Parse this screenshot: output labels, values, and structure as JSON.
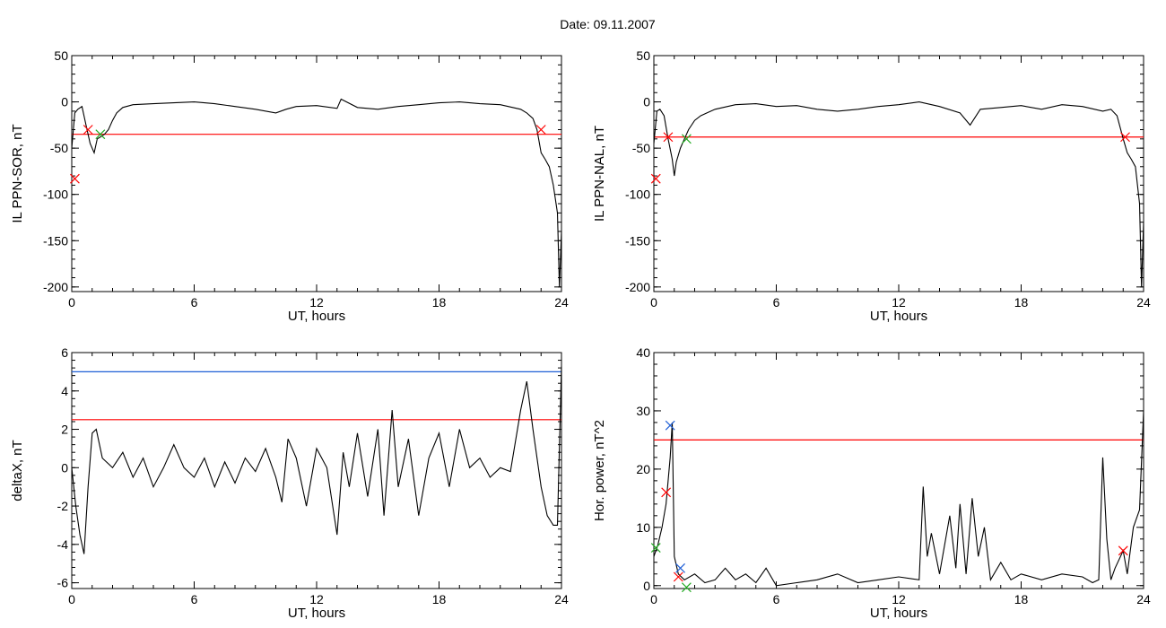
{
  "header": {
    "date_label": "Date:  09.11.2007"
  },
  "colors": {
    "trace": "#000000",
    "threshold_red": "#ff0000",
    "threshold_blue": "#1f5fd6",
    "marker_green": "#22aa22"
  },
  "chart_data": [
    {
      "type": "line",
      "ylabel": "IL PPN-SOR, nT",
      "xlabel": "UT, hours",
      "xlim": [
        0,
        24
      ],
      "ylim": [
        -205,
        50
      ],
      "xticks": [
        "0",
        "6",
        "12",
        "18",
        "24"
      ],
      "yticks": [
        "50",
        "0",
        "-50",
        "-100",
        "-150",
        "-200"
      ],
      "ytick_values": [
        50,
        0,
        -50,
        -100,
        -150,
        -200
      ],
      "threshold": -35,
      "series": [
        {
          "x": [
            0,
            0.15,
            0.3,
            0.5,
            0.7,
            0.9,
            1.1,
            1.25,
            1.4,
            1.6,
            1.8,
            2.0,
            2.2,
            2.5,
            3,
            4,
            5,
            6,
            7,
            8,
            9,
            10,
            10.5,
            11,
            12,
            13,
            13.2,
            14,
            15,
            16,
            17,
            18,
            19,
            20,
            21,
            22,
            22.3,
            22.6,
            22.8,
            23,
            23.2,
            23.4,
            23.6,
            23.8,
            23.9,
            24
          ],
          "y": [
            -50,
            -12,
            -8,
            -5,
            -25,
            -45,
            -55,
            -40,
            -38,
            -35,
            -30,
            -20,
            -12,
            -6,
            -3,
            -2,
            -1,
            0,
            -2,
            -5,
            -8,
            -12,
            -8,
            -5,
            -4,
            -7,
            3,
            -6,
            -8,
            -5,
            -3,
            -1,
            0,
            -2,
            -3,
            -8,
            -12,
            -18,
            -30,
            -55,
            -62,
            -70,
            -90,
            -120,
            -200,
            -140
          ]
        }
      ],
      "markers": [
        {
          "x": 0.8,
          "y": -30,
          "color": "red"
        },
        {
          "x": 1.4,
          "y": -35,
          "color": "green"
        },
        {
          "x": 23.0,
          "y": -30,
          "color": "red"
        },
        {
          "x": 0.15,
          "y": -83,
          "color": "red"
        }
      ]
    },
    {
      "type": "line",
      "ylabel": "IL PPN-NAL, nT",
      "xlabel": "UT, hours",
      "xlim": [
        0,
        24
      ],
      "ylim": [
        -205,
        50
      ],
      "xticks": [
        "0",
        "6",
        "12",
        "18",
        "24"
      ],
      "yticks": [
        "50",
        "0",
        "-50",
        "-100",
        "-150",
        "-200"
      ],
      "ytick_values": [
        50,
        0,
        -50,
        -100,
        -150,
        -200
      ],
      "threshold": -38,
      "series": [
        {
          "x": [
            0,
            0.15,
            0.3,
            0.5,
            0.7,
            0.9,
            1.0,
            1.1,
            1.3,
            1.5,
            1.7,
            2.0,
            2.3,
            2.6,
            3,
            4,
            5,
            6,
            7,
            8,
            9,
            10,
            11,
            12,
            13,
            14,
            15,
            15.5,
            16,
            17,
            18,
            19,
            20,
            21,
            22,
            22.4,
            22.7,
            23,
            23.2,
            23.4,
            23.6,
            23.8,
            23.9,
            24
          ],
          "y": [
            -45,
            -10,
            -8,
            -15,
            -40,
            -62,
            -80,
            -65,
            -50,
            -40,
            -30,
            -20,
            -15,
            -12,
            -8,
            -3,
            -2,
            -5,
            -4,
            -8,
            -10,
            -8,
            -5,
            -3,
            0,
            -5,
            -12,
            -25,
            -8,
            -6,
            -4,
            -8,
            -3,
            -5,
            -10,
            -8,
            -15,
            -40,
            -55,
            -62,
            -70,
            -110,
            -200,
            -130
          ]
        }
      ],
      "markers": [
        {
          "x": 0.7,
          "y": -38,
          "color": "red"
        },
        {
          "x": 1.6,
          "y": -40,
          "color": "green"
        },
        {
          "x": 23.1,
          "y": -38,
          "color": "red"
        },
        {
          "x": 0.1,
          "y": -83,
          "color": "red"
        }
      ]
    },
    {
      "type": "line",
      "ylabel": "deltaX, nT",
      "xlabel": "UT, hours",
      "xlim": [
        0,
        24
      ],
      "ylim": [
        -6.3,
        6
      ],
      "xticks": [
        "0",
        "6",
        "12",
        "18",
        "24"
      ],
      "yticks": [
        "6",
        "4",
        "2",
        "0",
        "-2",
        "-4",
        "-6"
      ],
      "ytick_values": [
        6,
        4,
        2,
        0,
        -2,
        -4,
        -6
      ],
      "threshold": 2.5,
      "threshold2": 5.0,
      "series": [
        {
          "x": [
            0,
            0.2,
            0.4,
            0.6,
            0.8,
            1.0,
            1.2,
            1.5,
            2,
            2.5,
            3,
            3.5,
            4,
            4.5,
            5,
            5.5,
            6,
            6.5,
            7,
            7.5,
            8,
            8.5,
            9,
            9.5,
            10,
            10.3,
            10.6,
            11,
            11.5,
            12,
            12.5,
            13,
            13.3,
            13.6,
            14,
            14.5,
            15,
            15.3,
            15.7,
            16,
            16.5,
            17,
            17.5,
            18,
            18.5,
            19,
            19.5,
            20,
            20.5,
            21,
            21.5,
            22,
            22.3,
            22.6,
            23,
            23.3,
            23.6,
            23.8,
            24
          ],
          "y": [
            0,
            -2,
            -3.5,
            -4.5,
            -1,
            1.8,
            2,
            0.5,
            0,
            0.8,
            -0.5,
            0.5,
            -1,
            0,
            1.2,
            0,
            -0.5,
            0.5,
            -1,
            0.3,
            -0.8,
            0.5,
            -0.2,
            1,
            -0.5,
            -1.8,
            1.5,
            0.5,
            -2,
            1,
            0,
            -3.5,
            0.8,
            -1,
            1.8,
            -1.5,
            2,
            -2.5,
            3,
            -1,
            1.5,
            -2.5,
            0.5,
            1.8,
            -1,
            2,
            0,
            0.5,
            -0.5,
            0,
            -0.2,
            3,
            4.5,
            2,
            -1,
            -2.5,
            -3,
            -3,
            5.3
          ]
        }
      ],
      "markers": []
    },
    {
      "type": "line",
      "ylabel": "Hor. power, nT^2",
      "xlabel": "UT, hours",
      "xlim": [
        0,
        24
      ],
      "ylim": [
        -0.5,
        40
      ],
      "xticks": [
        "0",
        "6",
        "12",
        "18",
        "24"
      ],
      "yticks": [
        "40",
        "30",
        "20",
        "10",
        "0"
      ],
      "ytick_values": [
        40,
        30,
        20,
        10,
        0
      ],
      "threshold": 25,
      "series": [
        {
          "x": [
            0,
            0.2,
            0.4,
            0.6,
            0.7,
            0.8,
            0.9,
            1.0,
            1.2,
            1.5,
            2,
            2.5,
            3,
            3.5,
            4,
            4.5,
            5,
            5.5,
            6,
            7,
            8,
            9,
            10,
            11,
            12,
            13,
            13.2,
            13.4,
            13.6,
            14,
            14.5,
            14.8,
            15,
            15.3,
            15.6,
            15.9,
            16.2,
            16.5,
            17,
            17.5,
            18,
            19,
            20,
            21,
            21.5,
            21.8,
            22,
            22.2,
            22.4,
            22.6,
            23,
            23.2,
            23.5,
            23.8,
            24
          ],
          "y": [
            5,
            7,
            10,
            14,
            18,
            22,
            28,
            5,
            2,
            1,
            2,
            0.5,
            1,
            3,
            1,
            2,
            0.5,
            3,
            0,
            0.5,
            1,
            2,
            0.5,
            1,
            1.5,
            1,
            17,
            5,
            9,
            2,
            12,
            3,
            14,
            2,
            15,
            5,
            10,
            1,
            4,
            1,
            2,
            1,
            2,
            1.5,
            0.5,
            1,
            22,
            8,
            1,
            3,
            6,
            2,
            10,
            13,
            30
          ]
        }
      ],
      "markers": [
        {
          "x": 0.8,
          "y": 27.5,
          "color": "blue"
        },
        {
          "x": 0.6,
          "y": 16,
          "color": "red"
        },
        {
          "x": 1.3,
          "y": 3,
          "color": "blue"
        },
        {
          "x": 1.2,
          "y": 1.5,
          "color": "red"
        },
        {
          "x": 1.6,
          "y": -0.3,
          "color": "green"
        },
        {
          "x": 23.0,
          "y": 6,
          "color": "red"
        },
        {
          "x": 0.1,
          "y": 6.5,
          "color": "green"
        }
      ]
    }
  ]
}
